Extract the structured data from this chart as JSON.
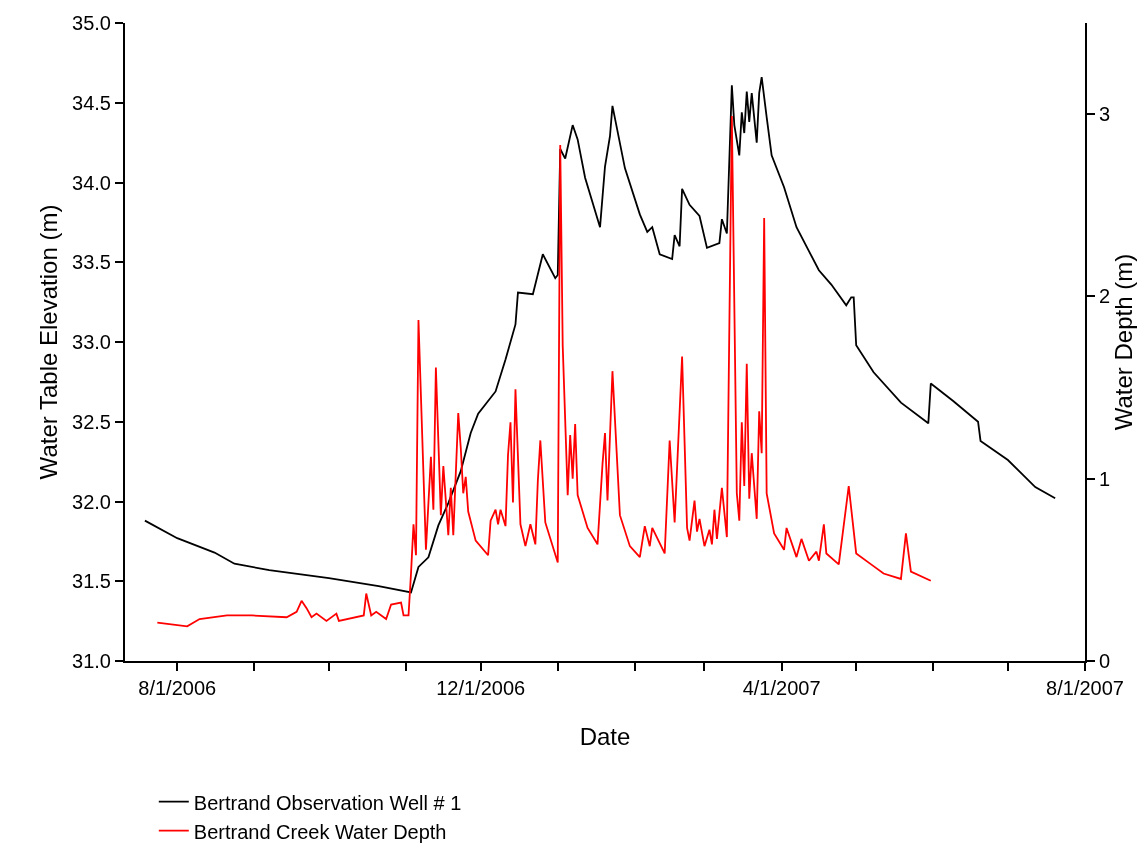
{
  "chart_data": {
    "type": "line",
    "xlabel": "Date",
    "ylabel": "Water Table Elevation (m)",
    "y2label": "Water Depth (m)",
    "xlim": [
      "2006-07-11",
      "2007-08-01"
    ],
    "xticks": [
      {
        "value": "2006-08-01",
        "label": "8/1/2006"
      },
      {
        "value": "2006-09-01",
        "label": null
      },
      {
        "value": "2006-10-01",
        "label": null
      },
      {
        "value": "2006-11-01",
        "label": null
      },
      {
        "value": "2006-12-01",
        "label": "12/1/2006"
      },
      {
        "value": "2007-01-01",
        "label": null
      },
      {
        "value": "2007-02-01",
        "label": null
      },
      {
        "value": "2007-03-01",
        "label": null
      },
      {
        "value": "2007-04-01",
        "label": "4/1/2007"
      },
      {
        "value": "2007-05-01",
        "label": null
      },
      {
        "value": "2007-06-01",
        "label": null
      },
      {
        "value": "2007-07-01",
        "label": null
      },
      {
        "value": "2007-08-01",
        "label": "8/1/2007"
      }
    ],
    "ylim": [
      31,
      35
    ],
    "yticks": [
      {
        "value": 31,
        "label": "31.0"
      },
      {
        "value": 31.5,
        "label": "31.5"
      },
      {
        "value": 32,
        "label": "32.0"
      },
      {
        "value": 32.5,
        "label": "32.5"
      },
      {
        "value": 33,
        "label": "33.0"
      },
      {
        "value": 33.5,
        "label": "33.5"
      },
      {
        "value": 34,
        "label": "34.0"
      },
      {
        "value": 34.5,
        "label": "34.5"
      },
      {
        "value": 35,
        "label": "35.0"
      }
    ],
    "y2lim": [
      0,
      3.5
    ],
    "y2ticks": [
      0,
      1,
      2,
      3
    ],
    "legend": "bottom",
    "marker": "none",
    "line_style": "solid",
    "series": [
      {
        "name": "Bertrand Observation Well # 1",
        "color": "#000000",
        "x": [
          "2006-07-19",
          "2006-08-01",
          "2006-08-16",
          "2006-08-24",
          "2006-09-07",
          "2006-10-01",
          "2006-10-21",
          "2006-11-03",
          "2006-11-06",
          "2006-11-10",
          "2006-11-14",
          "2006-11-18",
          "2006-11-23",
          "2006-11-27",
          "2006-11-30",
          "2006-12-07",
          "2006-12-11",
          "2006-12-15",
          "2006-12-16",
          "2006-12-22",
          "2006-12-26",
          "2006-12-31",
          "2007-01-01",
          "2007-01-02",
          "2007-01-04",
          "2007-01-07",
          "2007-01-09",
          "2007-01-12",
          "2007-01-18",
          "2007-01-20",
          "2007-01-22",
          "2007-01-23",
          "2007-01-28",
          "2007-02-03",
          "2007-02-06",
          "2007-02-08",
          "2007-02-11",
          "2007-02-16",
          "2007-02-17",
          "2007-02-19",
          "2007-02-20",
          "2007-02-23",
          "2007-02-27",
          "2007-03-02",
          "2007-03-07",
          "2007-03-08",
          "2007-03-10",
          "2007-03-12",
          "2007-03-13",
          "2007-03-15",
          "2007-03-16",
          "2007-03-17",
          "2007-03-18",
          "2007-03-19",
          "2007-03-20",
          "2007-03-22",
          "2007-03-23",
          "2007-03-24",
          "2007-03-26",
          "2007-03-28",
          "2007-04-02",
          "2007-04-07",
          "2007-04-12",
          "2007-04-16",
          "2007-04-21",
          "2007-04-27",
          "2007-04-29",
          "2007-04-30",
          "2007-05-01",
          "2007-05-08",
          "2007-05-19",
          "2007-05-30",
          "2007-05-31",
          "2007-06-09",
          "2007-06-19",
          "2007-06-20",
          "2007-07-01",
          "2007-07-12",
          "2007-07-20"
        ],
        "values": [
          31.88,
          31.77,
          31.68,
          31.61,
          31.57,
          31.52,
          31.47,
          31.43,
          31.59,
          31.65,
          31.85,
          31.99,
          32.19,
          32.43,
          32.55,
          32.69,
          32.89,
          33.11,
          33.31,
          33.3,
          33.55,
          33.4,
          33.42,
          34.21,
          34.15,
          34.36,
          34.27,
          34.03,
          33.72,
          34.1,
          34.29,
          34.48,
          34.09,
          33.8,
          33.69,
          33.72,
          33.55,
          33.52,
          33.67,
          33.6,
          33.96,
          33.86,
          33.79,
          33.59,
          33.62,
          33.77,
          33.68,
          34.61,
          34.36,
          34.17,
          34.44,
          34.31,
          34.57,
          34.38,
          34.56,
          34.25,
          34.56,
          34.66,
          34.41,
          34.17,
          33.97,
          33.72,
          33.57,
          33.45,
          33.36,
          33.23,
          33.28,
          33.28,
          32.98,
          32.81,
          32.62,
          32.49,
          32.74,
          32.63,
          32.5,
          32.38,
          32.26,
          32.09,
          32.02
        ]
      },
      {
        "name": "Bertrand Creek Water Depth",
        "color": "#ff0000",
        "axis": "y2",
        "x": [
          "2006-07-24",
          "2006-08-05",
          "2006-08-10",
          "2006-08-21",
          "2006-08-31",
          "2006-09-14",
          "2006-09-18",
          "2006-09-20",
          "2006-09-21",
          "2006-09-22",
          "2006-09-24",
          "2006-09-26",
          "2006-09-30",
          "2006-10-04",
          "2006-10-05",
          "2006-10-15",
          "2006-10-16",
          "2006-10-18",
          "2006-10-20",
          "2006-10-24",
          "2006-10-26",
          "2006-10-30",
          "2006-10-31",
          "2006-11-02",
          "2006-11-03",
          "2006-11-04",
          "2006-11-05",
          "2006-11-06",
          "2006-11-09",
          "2006-11-11",
          "2006-11-12",
          "2006-11-13",
          "2006-11-15",
          "2006-11-16",
          "2006-11-18",
          "2006-11-19",
          "2006-11-20",
          "2006-11-22",
          "2006-11-23",
          "2006-11-24",
          "2006-11-25",
          "2006-11-26",
          "2006-11-29",
          "2006-12-04",
          "2006-12-05",
          "2006-12-07",
          "2006-12-08",
          "2006-12-09",
          "2006-12-11",
          "2006-12-12",
          "2006-12-13",
          "2006-12-14",
          "2006-12-15",
          "2006-12-17",
          "2006-12-19",
          "2006-12-21",
          "2006-12-23",
          "2006-12-24",
          "2006-12-25",
          "2006-12-27",
          "2007-01-01",
          "2007-01-02",
          "2007-01-03",
          "2007-01-05",
          "2007-01-06",
          "2007-01-07",
          "2007-01-08",
          "2007-01-09",
          "2007-01-13",
          "2007-01-17",
          "2007-01-19",
          "2007-01-20",
          "2007-01-21",
          "2007-01-23",
          "2007-01-26",
          "2007-01-30",
          "2007-02-03",
          "2007-02-05",
          "2007-02-07",
          "2007-02-08",
          "2007-02-13",
          "2007-02-15",
          "2007-02-17",
          "2007-02-20",
          "2007-02-22",
          "2007-02-23",
          "2007-02-25",
          "2007-02-26",
          "2007-02-27",
          "2007-03-01",
          "2007-03-03",
          "2007-03-04",
          "2007-03-05",
          "2007-03-06",
          "2007-03-08",
          "2007-03-10",
          "2007-03-12",
          "2007-03-14",
          "2007-03-15",
          "2007-03-16",
          "2007-03-17",
          "2007-03-18",
          "2007-03-19",
          "2007-03-20",
          "2007-03-22",
          "2007-03-23",
          "2007-03-24",
          "2007-03-25",
          "2007-03-26",
          "2007-03-29",
          "2007-04-02",
          "2007-04-03",
          "2007-04-07",
          "2007-04-09",
          "2007-04-12",
          "2007-04-15",
          "2007-04-16",
          "2007-04-18",
          "2007-04-19",
          "2007-04-24",
          "2007-04-28",
          "2007-05-01",
          "2007-05-07",
          "2007-05-12",
          "2007-05-19",
          "2007-05-21",
          "2007-05-23",
          "2007-05-31"
        ],
        "values": [
          0.21,
          0.19,
          0.23,
          0.25,
          0.25,
          0.24,
          0.27,
          0.33,
          0.31,
          0.29,
          0.24,
          0.26,
          0.22,
          0.26,
          0.22,
          0.25,
          0.37,
          0.25,
          0.27,
          0.23,
          0.31,
          0.32,
          0.25,
          0.25,
          0.48,
          0.75,
          0.58,
          1.87,
          0.61,
          1.12,
          0.83,
          1.61,
          0.8,
          1.07,
          0.69,
          0.95,
          0.69,
          1.36,
          1.17,
          0.92,
          1.01,
          0.82,
          0.66,
          0.58,
          0.77,
          0.83,
          0.75,
          0.83,
          0.74,
          1.13,
          1.31,
          0.87,
          1.49,
          0.75,
          0.63,
          0.75,
          0.64,
          0.99,
          1.21,
          0.76,
          0.54,
          2.83,
          1.73,
          0.91,
          1.24,
          1.0,
          1.3,
          0.91,
          0.73,
          0.64,
          1.08,
          1.25,
          0.88,
          1.59,
          0.8,
          0.63,
          0.57,
          0.74,
          0.63,
          0.73,
          0.59,
          1.21,
          0.76,
          1.67,
          0.73,
          0.66,
          0.88,
          0.71,
          0.78,
          0.63,
          0.72,
          0.64,
          0.83,
          0.67,
          0.95,
          0.68,
          2.99,
          0.92,
          0.77,
          1.31,
          0.96,
          1.63,
          0.89,
          1.14,
          0.78,
          1.37,
          1.14,
          2.43,
          0.92,
          0.7,
          0.61,
          0.73,
          0.57,
          0.67,
          0.55,
          0.6,
          0.55,
          0.75,
          0.59,
          0.53,
          0.96,
          0.59,
          0.53,
          0.48,
          0.45,
          0.7,
          0.49,
          0.44
        ]
      }
    ]
  }
}
